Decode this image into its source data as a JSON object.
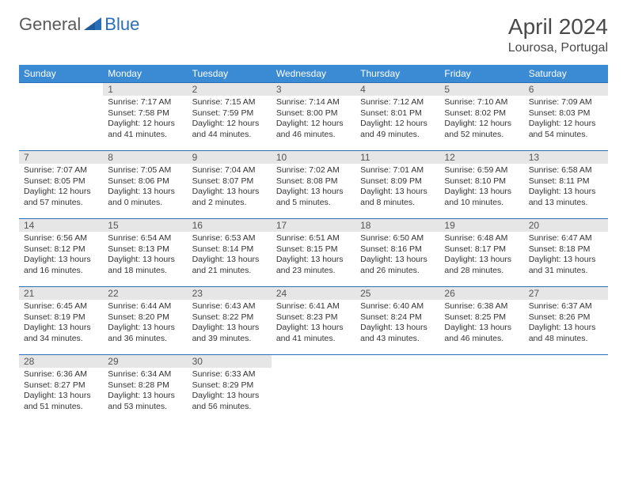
{
  "logo": {
    "part1": "General",
    "part2": "Blue"
  },
  "title": "April 2024",
  "location": "Lourosa, Portugal",
  "colors": {
    "header_bg": "#3b8bd4",
    "rule": "#2a6db8",
    "daynum_bg": "#e6e6e6",
    "text": "#333333",
    "logo_gray": "#5a5a5a",
    "logo_blue": "#2a6db8"
  },
  "weekdays": [
    "Sunday",
    "Monday",
    "Tuesday",
    "Wednesday",
    "Thursday",
    "Friday",
    "Saturday"
  ],
  "first_weekday_index": 1,
  "days": [
    {
      "n": 1,
      "sr": "7:17 AM",
      "ss": "7:58 PM",
      "dl": "12 hours and 41 minutes."
    },
    {
      "n": 2,
      "sr": "7:15 AM",
      "ss": "7:59 PM",
      "dl": "12 hours and 44 minutes."
    },
    {
      "n": 3,
      "sr": "7:14 AM",
      "ss": "8:00 PM",
      "dl": "12 hours and 46 minutes."
    },
    {
      "n": 4,
      "sr": "7:12 AM",
      "ss": "8:01 PM",
      "dl": "12 hours and 49 minutes."
    },
    {
      "n": 5,
      "sr": "7:10 AM",
      "ss": "8:02 PM",
      "dl": "12 hours and 52 minutes."
    },
    {
      "n": 6,
      "sr": "7:09 AM",
      "ss": "8:03 PM",
      "dl": "12 hours and 54 minutes."
    },
    {
      "n": 7,
      "sr": "7:07 AM",
      "ss": "8:05 PM",
      "dl": "12 hours and 57 minutes."
    },
    {
      "n": 8,
      "sr": "7:05 AM",
      "ss": "8:06 PM",
      "dl": "13 hours and 0 minutes."
    },
    {
      "n": 9,
      "sr": "7:04 AM",
      "ss": "8:07 PM",
      "dl": "13 hours and 2 minutes."
    },
    {
      "n": 10,
      "sr": "7:02 AM",
      "ss": "8:08 PM",
      "dl": "13 hours and 5 minutes."
    },
    {
      "n": 11,
      "sr": "7:01 AM",
      "ss": "8:09 PM",
      "dl": "13 hours and 8 minutes."
    },
    {
      "n": 12,
      "sr": "6:59 AM",
      "ss": "8:10 PM",
      "dl": "13 hours and 10 minutes."
    },
    {
      "n": 13,
      "sr": "6:58 AM",
      "ss": "8:11 PM",
      "dl": "13 hours and 13 minutes."
    },
    {
      "n": 14,
      "sr": "6:56 AM",
      "ss": "8:12 PM",
      "dl": "13 hours and 16 minutes."
    },
    {
      "n": 15,
      "sr": "6:54 AM",
      "ss": "8:13 PM",
      "dl": "13 hours and 18 minutes."
    },
    {
      "n": 16,
      "sr": "6:53 AM",
      "ss": "8:14 PM",
      "dl": "13 hours and 21 minutes."
    },
    {
      "n": 17,
      "sr": "6:51 AM",
      "ss": "8:15 PM",
      "dl": "13 hours and 23 minutes."
    },
    {
      "n": 18,
      "sr": "6:50 AM",
      "ss": "8:16 PM",
      "dl": "13 hours and 26 minutes."
    },
    {
      "n": 19,
      "sr": "6:48 AM",
      "ss": "8:17 PM",
      "dl": "13 hours and 28 minutes."
    },
    {
      "n": 20,
      "sr": "6:47 AM",
      "ss": "8:18 PM",
      "dl": "13 hours and 31 minutes."
    },
    {
      "n": 21,
      "sr": "6:45 AM",
      "ss": "8:19 PM",
      "dl": "13 hours and 34 minutes."
    },
    {
      "n": 22,
      "sr": "6:44 AM",
      "ss": "8:20 PM",
      "dl": "13 hours and 36 minutes."
    },
    {
      "n": 23,
      "sr": "6:43 AM",
      "ss": "8:22 PM",
      "dl": "13 hours and 39 minutes."
    },
    {
      "n": 24,
      "sr": "6:41 AM",
      "ss": "8:23 PM",
      "dl": "13 hours and 41 minutes."
    },
    {
      "n": 25,
      "sr": "6:40 AM",
      "ss": "8:24 PM",
      "dl": "13 hours and 43 minutes."
    },
    {
      "n": 26,
      "sr": "6:38 AM",
      "ss": "8:25 PM",
      "dl": "13 hours and 46 minutes."
    },
    {
      "n": 27,
      "sr": "6:37 AM",
      "ss": "8:26 PM",
      "dl": "13 hours and 48 minutes."
    },
    {
      "n": 28,
      "sr": "6:36 AM",
      "ss": "8:27 PM",
      "dl": "13 hours and 51 minutes."
    },
    {
      "n": 29,
      "sr": "6:34 AM",
      "ss": "8:28 PM",
      "dl": "13 hours and 53 minutes."
    },
    {
      "n": 30,
      "sr": "6:33 AM",
      "ss": "8:29 PM",
      "dl": "13 hours and 56 minutes."
    }
  ],
  "labels": {
    "sunrise": "Sunrise:",
    "sunset": "Sunset:",
    "daylight": "Daylight:"
  }
}
